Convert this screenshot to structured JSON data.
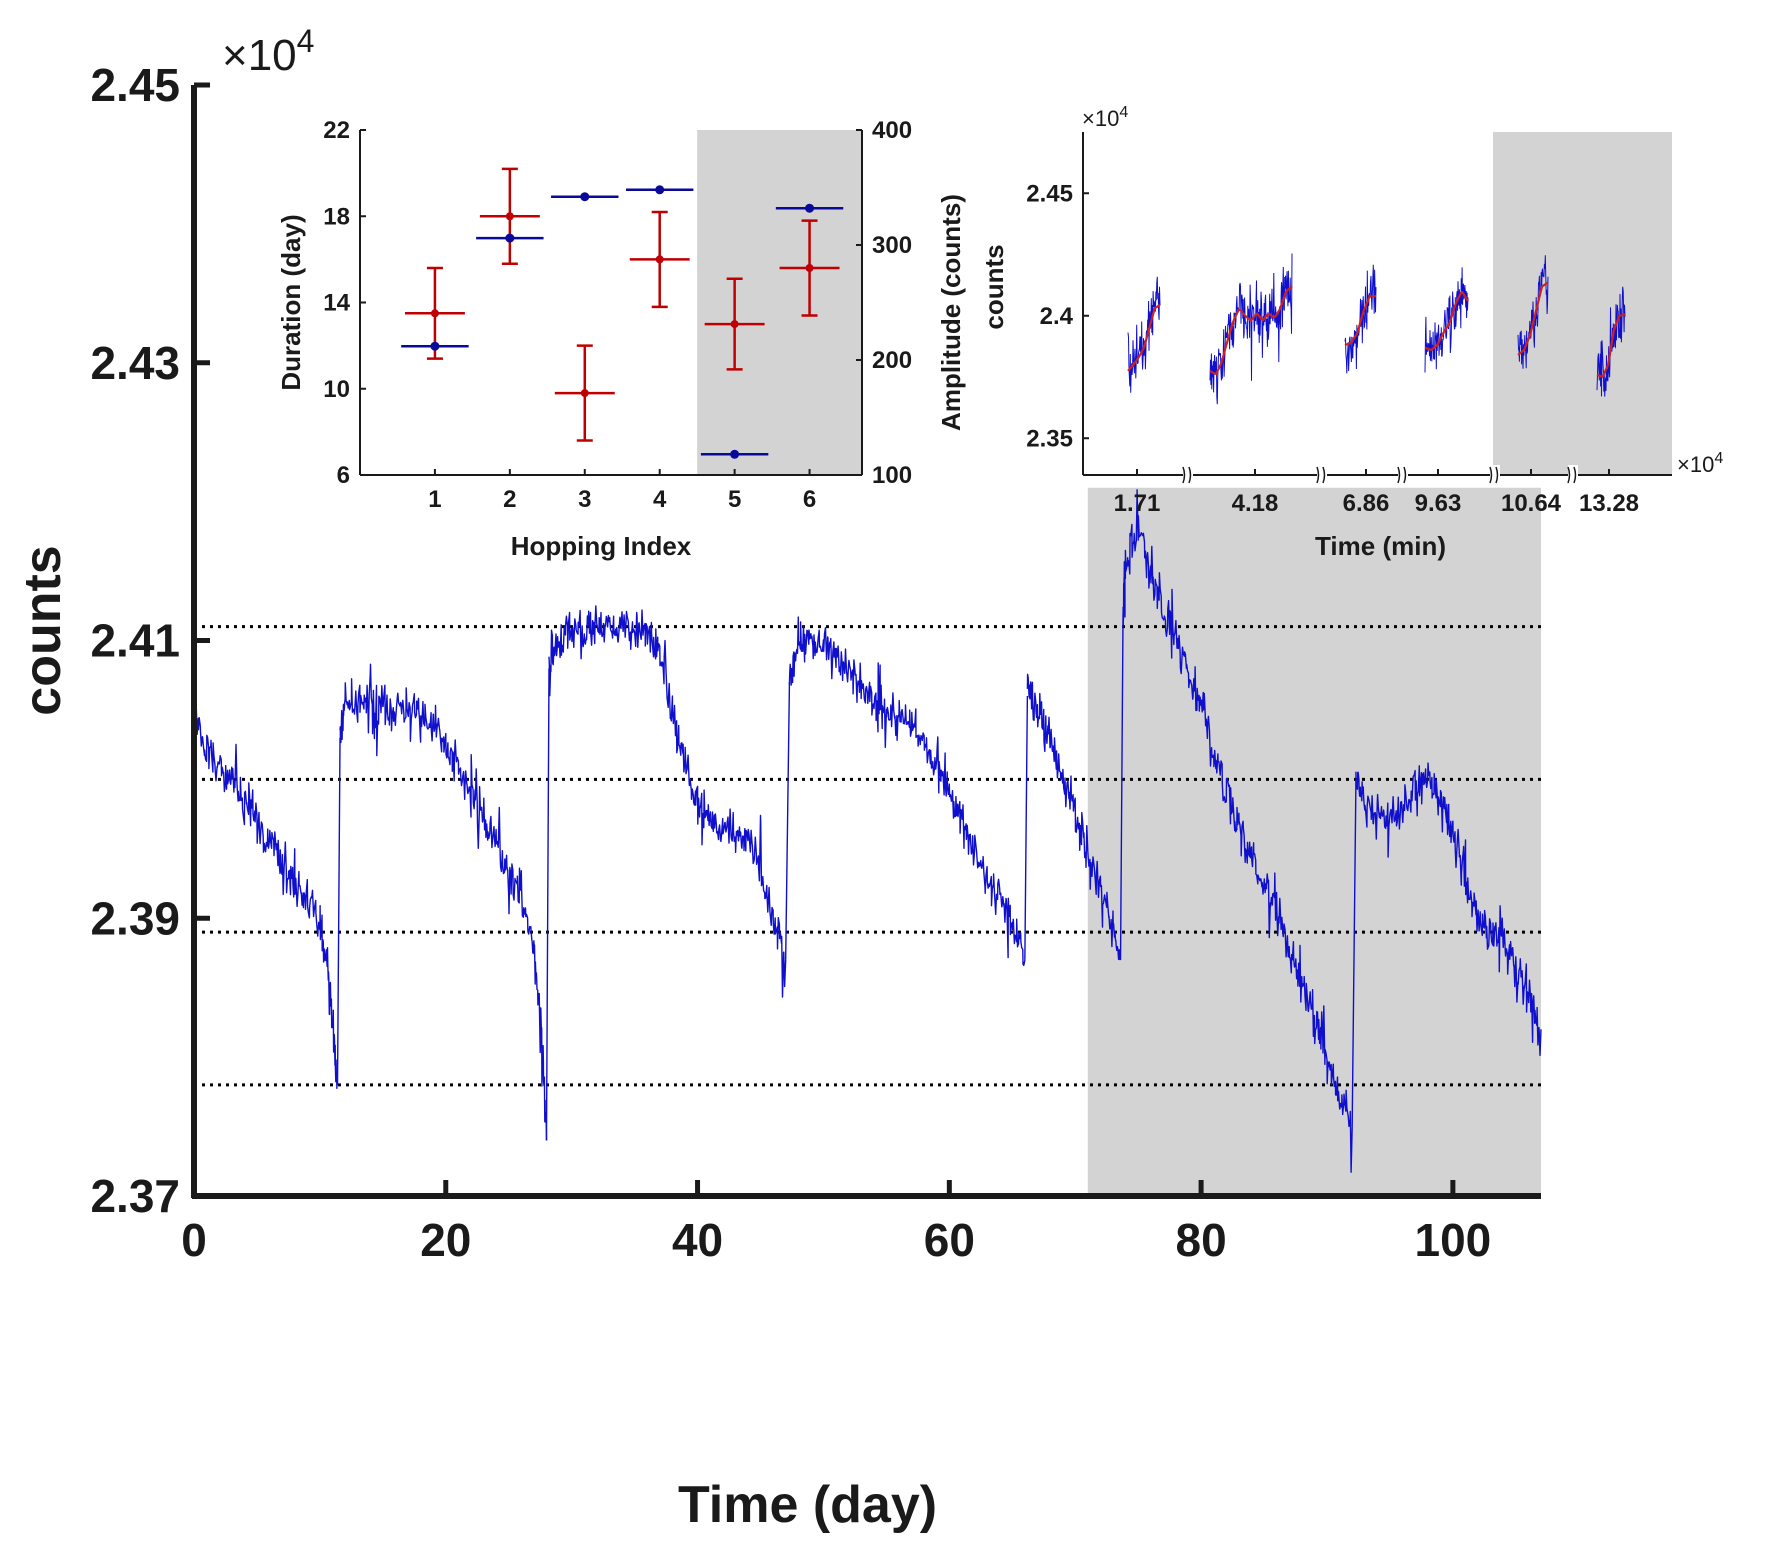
{
  "chart_data": [
    {
      "type": "line",
      "xlabel": "Time (day)",
      "ylabel": "counts",
      "y_multiplier": "×10",
      "y_multiplier_exponent": "4",
      "xlim": [
        0,
        107
      ],
      "ylim": [
        2.37,
        2.45
      ],
      "x_ticks": [
        "0",
        "20",
        "40",
        "60",
        "80",
        "100"
      ],
      "x_tick_values": [
        0,
        20,
        40,
        60,
        80,
        100
      ],
      "y_ticks": [
        "2.37",
        "2.39",
        "2.41",
        "2.43",
        "2.45"
      ],
      "y_tick_values": [
        2.37,
        2.39,
        2.41,
        2.43,
        2.45
      ],
      "reference_lines_y": [
        2.411,
        2.4,
        2.389,
        2.378
      ],
      "shaded_region_x": [
        71,
        107
      ],
      "shaded_region_y": [
        2.37,
        2.421
      ],
      "grid": false,
      "line_color": "#1010cc",
      "shade_color": "#d3d3d3",
      "series": [
        {
          "segments": [
            {
              "x": [
                0,
                1,
                2,
                3,
                4,
                5,
                6,
                7,
                8,
                9,
                10,
                10.5,
                11,
                11.4
              ],
              "y": [
                2.404,
                2.4025,
                2.401,
                2.4,
                2.3985,
                2.397,
                2.3955,
                2.394,
                2.3925,
                2.391,
                2.39,
                2.387,
                2.3825,
                2.378
              ]
            },
            {
              "x": [
                11.6,
                12,
                13,
                14,
                15,
                16,
                17,
                18,
                19,
                20,
                21,
                22,
                23,
                24,
                25,
                26,
                27,
                27.6,
                28
              ],
              "y": [
                2.403,
                2.4055,
                2.4055,
                2.4052,
                2.405,
                2.405,
                2.4052,
                2.405,
                2.404,
                2.4025,
                2.401,
                2.399,
                2.397,
                2.395,
                2.393,
                2.391,
                2.388,
                2.382,
                2.374
              ]
            },
            {
              "x": [
                28.2,
                29,
                30,
                31,
                32,
                33,
                34,
                35,
                36,
                37,
                38,
                39,
                40,
                41,
                42,
                43,
                44,
                45,
                46,
                47
              ],
              "y": [
                2.408,
                2.41,
                2.411,
                2.411,
                2.4108,
                2.411,
                2.411,
                2.411,
                2.4105,
                2.409,
                2.405,
                2.401,
                2.398,
                2.397,
                2.3965,
                2.396,
                2.3955,
                2.394,
                2.39,
                2.387
              ]
            },
            {
              "x": [
                47.3,
                48,
                49,
                50,
                51,
                52,
                53,
                54,
                55,
                56,
                57,
                58,
                59,
                60,
                61,
                62,
                63,
                64,
                65,
                66
              ],
              "y": [
                2.407,
                2.41,
                2.41,
                2.4095,
                2.409,
                2.408,
                2.4065,
                2.4055,
                2.405,
                2.4045,
                2.404,
                2.4025,
                2.401,
                2.399,
                2.397,
                2.395,
                2.393,
                2.3915,
                2.39,
                2.387
              ]
            },
            {
              "x": [
                66.2,
                67,
                68,
                69,
                70,
                71,
                72,
                73,
                73.6
              ],
              "y": [
                2.406,
                2.405,
                2.403,
                2.4,
                2.3975,
                2.3945,
                2.392,
                2.3895,
                2.387
              ]
            },
            {
              "x": [
                73.8,
                74,
                75,
                76,
                77,
                78,
                79,
                80,
                81,
                82,
                83,
                84,
                85,
                86,
                87,
                88,
                89,
                90,
                91,
                92
              ],
              "y": [
                2.412,
                2.416,
                2.418,
                2.415,
                2.412,
                2.4105,
                2.408,
                2.405,
                2.402,
                2.399,
                2.3965,
                2.3945,
                2.3925,
                2.3905,
                2.388,
                2.3855,
                2.383,
                2.38,
                2.377,
                2.375
              ]
            },
            {
              "x": [
                92.3,
                93,
                94,
                95,
                96,
                97,
                98,
                99,
                100,
                101,
                102,
                103,
                104,
                105,
                106,
                107
              ],
              "y": [
                2.4,
                2.3985,
                2.3975,
                2.397,
                2.398,
                2.3995,
                2.4,
                2.3985,
                2.396,
                2.393,
                2.3905,
                2.389,
                2.388,
                2.3865,
                2.3845,
                2.382
              ]
            }
          ]
        }
      ]
    },
    {
      "type": "scatter",
      "xlabel": "Hopping Index",
      "ylabel": "Duration (day)",
      "ylabel_right": "Amplitude (counts)",
      "xlim": [
        0,
        6.7
      ],
      "ylim": [
        6,
        22
      ],
      "ylim_right": [
        100,
        400
      ],
      "x_ticks": [
        "1",
        "2",
        "3",
        "4",
        "5",
        "6"
      ],
      "y_ticks": [
        "6",
        "10",
        "14",
        "18",
        "22"
      ],
      "y_ticks_right": [
        "100",
        "200",
        "300",
        "400"
      ],
      "shaded_region_x": [
        4.5,
        6.7
      ],
      "series": [
        {
          "color": "#c00000",
          "axis": "left",
          "x": [
            1,
            2,
            3,
            4,
            5,
            6
          ],
          "y": [
            13.5,
            18,
            9.8,
            16,
            13,
            15.6
          ],
          "y_err": [
            2.1,
            2.2,
            2.2,
            2.2,
            2.1,
            2.2
          ],
          "x_err": 0.4
        },
        {
          "color": "#0a0a9a",
          "axis": "right",
          "x": [
            1,
            2,
            3,
            4,
            5,
            6
          ],
          "y": [
            212,
            306,
            342,
            348,
            118,
            332
          ],
          "x_err": 0.45
        }
      ]
    },
    {
      "type": "line",
      "xlabel": "Time (min)",
      "ylabel": "counts",
      "y_multiplier": "×10",
      "y_multiplier_exponent": "4",
      "x_multiplier": "×10",
      "x_multiplier_exponent": "4",
      "ylim": [
        2.335,
        2.475
      ],
      "y_ticks": [
        "2.35",
        "2.4",
        "2.45"
      ],
      "y_tick_values": [
        2.35,
        2.4,
        2.45
      ],
      "x_ticks": [
        "1.71",
        "4.18",
        "6.86",
        "9.63",
        "10.64",
        "13.28"
      ],
      "axis_break_marks": 6,
      "shaded_region": "segments 5-6",
      "segment_color": "#1010cc",
      "smooth_color": "#cc2222",
      "segments": [
        {
          "label": "1.71",
          "smooth": [
            2.3775,
            2.38,
            2.383,
            2.387,
            2.395,
            2.403,
            2.4045
          ],
          "spread": 0.018
        },
        {
          "label": "4.18",
          "smooth": [
            2.3775,
            2.376,
            2.381,
            2.39,
            2.398,
            2.403,
            2.4,
            2.398,
            2.401,
            2.398,
            2.401,
            2.399,
            2.403,
            2.41,
            2.412
          ],
          "spread": 0.017
        },
        {
          "label": "6.86",
          "smooth": [
            2.388,
            2.389,
            2.393,
            2.402,
            2.408,
            2.408
          ],
          "spread": 0.017
        },
        {
          "label": "9.63",
          "smooth": [
            2.387,
            2.386,
            2.388,
            2.393,
            2.397,
            2.405,
            2.41,
            2.406
          ],
          "spread": 0.018
        },
        {
          "label": "10.64",
          "smooth": [
            2.384,
            2.386,
            2.392,
            2.402,
            2.412,
            2.4135
          ],
          "spread": 0.016
        },
        {
          "label": "13.28",
          "smooth": [
            2.376,
            2.375,
            2.38,
            2.394,
            2.4,
            2.4005
          ],
          "spread": 0.017
        }
      ]
    }
  ]
}
